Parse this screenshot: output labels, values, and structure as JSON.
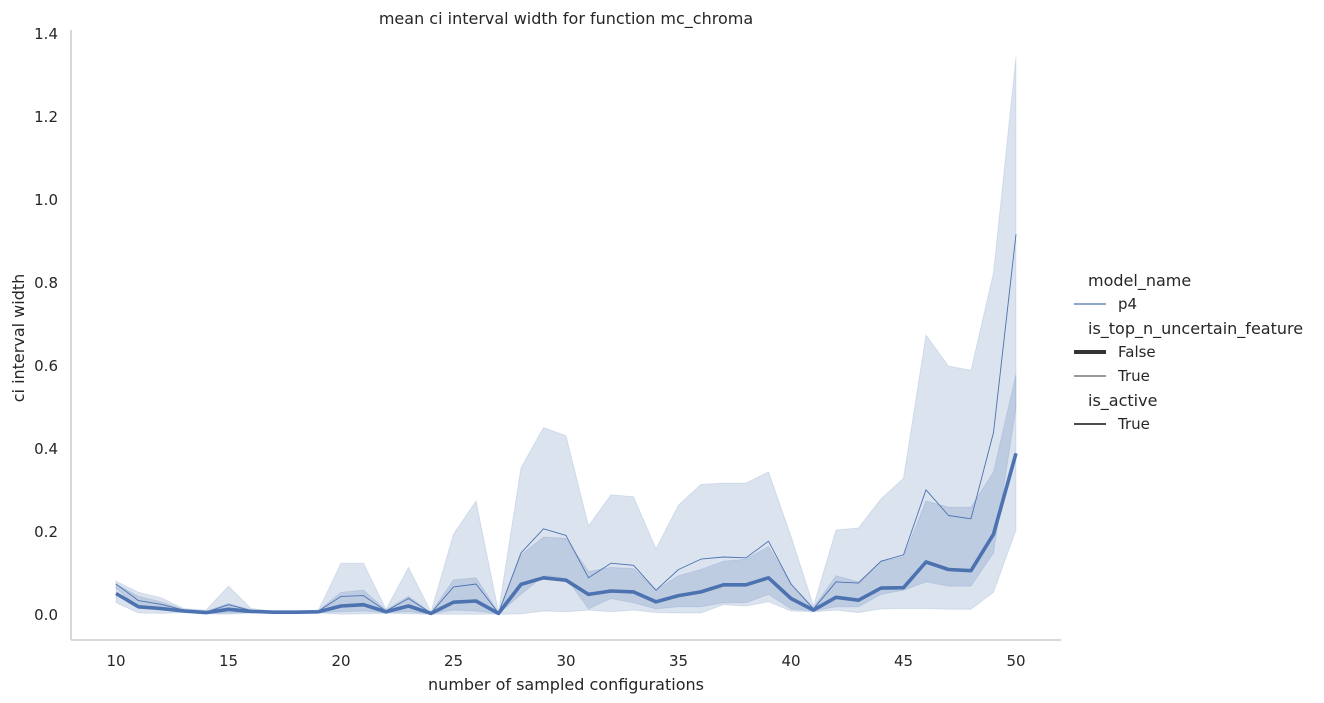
{
  "chart_data": {
    "type": "line",
    "title": "mean ci interval width for function mc_chroma",
    "xlabel": "number of sampled configurations",
    "ylabel": "ci interval width",
    "xlim": [
      8,
      52
    ],
    "ylim": [
      -0.06,
      1.41
    ],
    "xticks": [
      "10",
      "15",
      "20",
      "25",
      "30",
      "35",
      "40",
      "45",
      "50"
    ],
    "yticks": [
      "0.0",
      "0.2",
      "0.4",
      "0.6",
      "0.8",
      "1.0",
      "1.2",
      "1.4"
    ],
    "grid": false,
    "legend_position": "right",
    "color": "#4c72b0",
    "x": [
      10,
      11,
      12,
      13,
      14,
      15,
      16,
      17,
      18,
      19,
      20,
      21,
      22,
      23,
      24,
      25,
      26,
      27,
      28,
      29,
      30,
      31,
      32,
      33,
      34,
      35,
      36,
      37,
      38,
      39,
      40,
      41,
      42,
      43,
      44,
      45,
      46,
      47,
      48,
      49,
      50
    ],
    "series": [
      {
        "name": "False",
        "line_width": "thick",
        "values": [
          0.052,
          0.02,
          0.016,
          0.01,
          0.006,
          0.014,
          0.009,
          0.007,
          0.007,
          0.008,
          0.022,
          0.025,
          0.008,
          0.022,
          0.004,
          0.031,
          0.034,
          0.004,
          0.074,
          0.09,
          0.084,
          0.05,
          0.058,
          0.056,
          0.032,
          0.047,
          0.056,
          0.073,
          0.073,
          0.09,
          0.04,
          0.012,
          0.043,
          0.036,
          0.065,
          0.066,
          0.128,
          0.11,
          0.107,
          0.195,
          0.39
        ],
        "ci_upper": [
          0.075,
          0.045,
          0.032,
          0.014,
          0.009,
          0.028,
          0.013,
          0.009,
          0.009,
          0.011,
          0.055,
          0.06,
          0.012,
          0.045,
          0.006,
          0.085,
          0.09,
          0.006,
          0.145,
          0.188,
          0.185,
          0.105,
          0.115,
          0.112,
          0.06,
          0.095,
          0.11,
          0.13,
          0.135,
          0.165,
          0.075,
          0.018,
          0.095,
          0.08,
          0.13,
          0.14,
          0.275,
          0.26,
          0.26,
          0.345,
          0.58
        ],
        "ci_lower": [
          0.03,
          0.005,
          0.004,
          0.006,
          0.003,
          0.002,
          0.005,
          0.005,
          0.005,
          0.005,
          0.002,
          0.003,
          0.004,
          0.003,
          0.002,
          0.002,
          0.002,
          0.002,
          0.003,
          0.01,
          0.008,
          0.012,
          0.008,
          0.012,
          0.006,
          0.005,
          0.005,
          0.025,
          0.022,
          0.032,
          0.01,
          0.008,
          0.012,
          0.006,
          0.015,
          0.016,
          0.016,
          0.014,
          0.014,
          0.055,
          0.205
        ]
      },
      {
        "name": "True",
        "line_width": "thin",
        "values": [
          0.075,
          0.035,
          0.026,
          0.012,
          0.007,
          0.025,
          0.011,
          0.008,
          0.008,
          0.01,
          0.045,
          0.047,
          0.01,
          0.04,
          0.005,
          0.068,
          0.075,
          0.005,
          0.15,
          0.208,
          0.192,
          0.09,
          0.125,
          0.12,
          0.06,
          0.11,
          0.135,
          0.14,
          0.138,
          0.178,
          0.075,
          0.015,
          0.08,
          0.077,
          0.13,
          0.145,
          0.302,
          0.24,
          0.232,
          0.44,
          0.918
        ],
        "ci_upper": [
          0.082,
          0.055,
          0.042,
          0.016,
          0.012,
          0.07,
          0.016,
          0.01,
          0.01,
          0.012,
          0.125,
          0.125,
          0.014,
          0.115,
          0.008,
          0.195,
          0.275,
          0.008,
          0.355,
          0.452,
          0.432,
          0.215,
          0.29,
          0.285,
          0.16,
          0.265,
          0.315,
          0.318,
          0.318,
          0.345,
          0.19,
          0.022,
          0.205,
          0.21,
          0.28,
          0.33,
          0.675,
          0.6,
          0.59,
          0.825,
          1.345
        ],
        "ci_lower": [
          0.065,
          0.018,
          0.012,
          0.008,
          0.004,
          0.005,
          0.006,
          0.006,
          0.006,
          0.006,
          0.008,
          0.01,
          0.006,
          0.008,
          0.003,
          0.012,
          0.01,
          0.003,
          0.05,
          0.095,
          0.09,
          0.015,
          0.04,
          0.03,
          0.015,
          0.02,
          0.02,
          0.03,
          0.03,
          0.05,
          0.015,
          0.01,
          0.02,
          0.02,
          0.05,
          0.06,
          0.08,
          0.07,
          0.07,
          0.15,
          0.5
        ]
      }
    ],
    "legend": [
      {
        "kind": "title",
        "text": "model_name"
      },
      {
        "kind": "line",
        "text": "p4",
        "style": "color"
      },
      {
        "kind": "title",
        "text": "is_top_n_uncertain_feature"
      },
      {
        "kind": "line",
        "text": "False",
        "style": "thick"
      },
      {
        "kind": "line",
        "text": "True",
        "style": "thin"
      },
      {
        "kind": "title",
        "text": "is_active"
      },
      {
        "kind": "line",
        "text": "True",
        "style": "dark"
      }
    ]
  }
}
